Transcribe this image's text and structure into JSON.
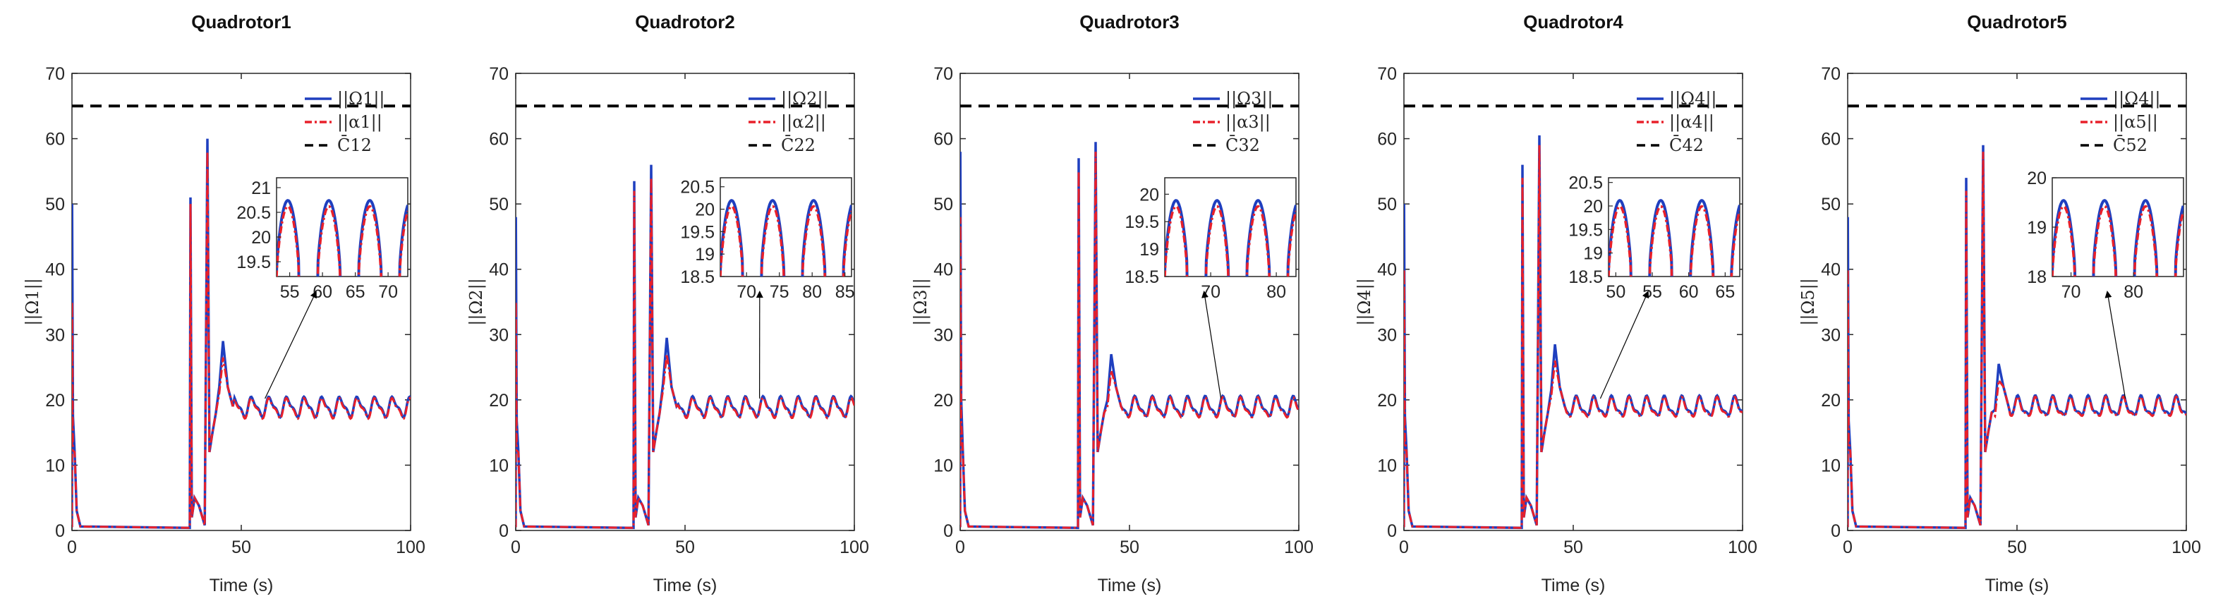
{
  "chart_data": [
    {
      "type": "line",
      "title": "Quadrotor1",
      "xlabel": "Time (s)",
      "ylabel": "||Ω1||",
      "xlim": [
        0,
        100
      ],
      "ylim": [
        0,
        70
      ],
      "xticks": [
        "0",
        "50",
        "100"
      ],
      "yticks": [
        "0",
        "10",
        "20",
        "30",
        "40",
        "50",
        "60",
        "70"
      ],
      "bound": 65,
      "spikes": {
        "blue_start": 50,
        "red_start": 35,
        "jump1_t": 35,
        "jump1_blue": 51,
        "jump1_red": 50,
        "jump2_t": 40,
        "jump2_blue": 60,
        "jump2_red": 58,
        "bump_peak": 29
      },
      "series": [
        {
          "name": "||Ω1||",
          "color": "#1f3fbf",
          "style": "solid"
        },
        {
          "name": "||α1||",
          "color": "#e8202a",
          "style": "dashdot"
        },
        {
          "name": "C̄12",
          "color": "#000000",
          "style": "dashed",
          "value": 65
        }
      ],
      "inset": {
        "xlim": [
          53,
          73
        ],
        "ylim": [
          19.2,
          21.2
        ],
        "xticks": [
          "55",
          "60",
          "65",
          "70"
        ],
        "yticks": [
          "19.5",
          "20",
          "20.5",
          "21"
        ],
        "arrow_t": 57
      }
    },
    {
      "type": "line",
      "title": "Quadrotor2",
      "xlabel": "Time (s)",
      "ylabel": "||Ω2||",
      "xlim": [
        0,
        100
      ],
      "ylim": [
        0,
        70
      ],
      "xticks": [
        "0",
        "50",
        "100"
      ],
      "yticks": [
        "0",
        "10",
        "20",
        "30",
        "40",
        "50",
        "60",
        "70"
      ],
      "bound": 65,
      "spikes": {
        "blue_start": 48,
        "red_start": 35,
        "jump1_t": 35,
        "jump1_blue": 53.5,
        "jump1_red": 52,
        "jump2_t": 40,
        "jump2_blue": 56,
        "jump2_red": 54,
        "bump_peak": 29.5
      },
      "series": [
        {
          "name": "||Ω2||",
          "color": "#1f3fbf",
          "style": "solid"
        },
        {
          "name": "||α2||",
          "color": "#e8202a",
          "style": "dashdot"
        },
        {
          "name": "C̄22",
          "color": "#000000",
          "style": "dashed",
          "value": 65
        }
      ],
      "inset": {
        "xlim": [
          66,
          86
        ],
        "ylim": [
          18.5,
          20.7
        ],
        "xticks": [
          "70",
          "75",
          "80",
          "85"
        ],
        "yticks": [
          "18.5",
          "19",
          "19.5",
          "20",
          "20.5"
        ],
        "arrow_t": 72
      }
    },
    {
      "type": "line",
      "title": "Quadrotor3",
      "xlabel": "Time (s)",
      "ylabel": "||Ω3||",
      "xlim": [
        0,
        100
      ],
      "ylim": [
        0,
        70
      ],
      "xticks": [
        "0",
        "50",
        "100"
      ],
      "yticks": [
        "0",
        "10",
        "20",
        "30",
        "40",
        "50",
        "60",
        "70"
      ],
      "bound": 65,
      "spikes": {
        "blue_start": 58,
        "red_start": 48,
        "jump1_t": 35,
        "jump1_blue": 57,
        "jump1_red": 55,
        "jump2_t": 40,
        "jump2_blue": 59.5,
        "jump2_red": 58,
        "bump_peak": 27
      },
      "series": [
        {
          "name": "||Ω3||",
          "color": "#1f3fbf",
          "style": "solid"
        },
        {
          "name": "||α3||",
          "color": "#e8202a",
          "style": "dashdot"
        },
        {
          "name": "C̄32",
          "color": "#000000",
          "style": "dashed",
          "value": 65
        }
      ],
      "inset": {
        "xlim": [
          63,
          83
        ],
        "ylim": [
          18.5,
          20.3
        ],
        "xticks": [
          "70",
          "80"
        ],
        "yticks": [
          "18.5",
          "19",
          "19.5",
          "20"
        ],
        "arrow_t": 77
      }
    },
    {
      "type": "line",
      "title": "Quadrotor4",
      "xlabel": "Time (s)",
      "ylabel": "||Ω4||",
      "xlim": [
        0,
        100
      ],
      "ylim": [
        0,
        70
      ],
      "xticks": [
        "0",
        "50",
        "100"
      ],
      "yticks": [
        "0",
        "10",
        "20",
        "30",
        "40",
        "50",
        "60",
        "70"
      ],
      "bound": 65,
      "spikes": {
        "blue_start": 50,
        "red_start": 40,
        "jump1_t": 35,
        "jump1_blue": 56,
        "jump1_red": 54,
        "jump2_t": 40,
        "jump2_blue": 60.5,
        "jump2_red": 59,
        "bump_peak": 28.5
      },
      "series": [
        {
          "name": "||Ω4||",
          "color": "#1f3fbf",
          "style": "solid"
        },
        {
          "name": "||α4||",
          "color": "#e8202a",
          "style": "dashdot"
        },
        {
          "name": "C̄42",
          "color": "#000000",
          "style": "dashed",
          "value": 65
        }
      ],
      "inset": {
        "xlim": [
          49,
          67
        ],
        "ylim": [
          18.5,
          20.6
        ],
        "xticks": [
          "50",
          "55",
          "60",
          "65"
        ],
        "yticks": [
          "18.5",
          "19",
          "19.5",
          "20",
          "20.5"
        ],
        "arrow_t": 58
      }
    },
    {
      "type": "line",
      "title": "Quadrotor5",
      "xlabel": "Time (s)",
      "ylabel": "||Ω5||",
      "xlim": [
        0,
        100
      ],
      "ylim": [
        0,
        70
      ],
      "xticks": [
        "0",
        "50",
        "100"
      ],
      "yticks": [
        "0",
        "10",
        "20",
        "30",
        "40",
        "50",
        "60",
        "70"
      ],
      "bound": 65,
      "spikes": {
        "blue_start": 48,
        "red_start": 40,
        "jump1_t": 35,
        "jump1_blue": 54,
        "jump1_red": 52,
        "jump2_t": 40,
        "jump2_blue": 59,
        "jump2_red": 58,
        "bump_peak": 25.5
      },
      "series": [
        {
          "name": "||Ω4||",
          "color": "#1f3fbf",
          "style": "solid"
        },
        {
          "name": "||α5||",
          "color": "#e8202a",
          "style": "dashdot"
        },
        {
          "name": "C̄52",
          "color": "#000000",
          "style": "dashed",
          "value": 65
        }
      ],
      "inset": {
        "xlim": [
          67,
          88
        ],
        "ylim": [
          18,
          20
        ],
        "xticks": [
          "70",
          "80"
        ],
        "yticks": [
          "18",
          "19",
          "20"
        ],
        "arrow_t": 82
      }
    }
  ]
}
